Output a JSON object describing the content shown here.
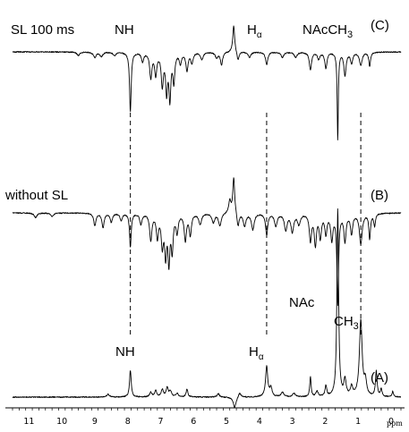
{
  "chart_data": {
    "type": "line",
    "title": "",
    "xlabel": "ppm",
    "ylabel": "",
    "xlim": [
      11.5,
      -0.3
    ],
    "x_reversed": true,
    "x_ticks": [
      "11",
      "10",
      "9",
      "8",
      "7",
      "6",
      "5",
      "4",
      "3",
      "2",
      "1",
      "0"
    ],
    "grid": false,
    "series": [
      {
        "id": "A",
        "name": "(A)",
        "direction": "up",
        "peaks": [
          {
            "x": 8.6,
            "h": 3,
            "w": 0.05
          },
          {
            "x": 7.92,
            "h": 30,
            "w": 0.03
          },
          {
            "x": 7.3,
            "h": 5,
            "w": 0.04
          },
          {
            "x": 7.15,
            "h": 7,
            "w": 0.04
          },
          {
            "x": 6.95,
            "h": 8,
            "w": 0.04
          },
          {
            "x": 6.8,
            "h": 10,
            "w": 0.04
          },
          {
            "x": 6.7,
            "h": 6,
            "w": 0.04
          },
          {
            "x": 6.5,
            "h": 4,
            "w": 0.04
          },
          {
            "x": 6.2,
            "h": 9,
            "w": 0.03
          },
          {
            "x": 5.25,
            "h": 4,
            "w": 0.04
          },
          {
            "x": 4.75,
            "h": -12,
            "w": 0.05
          },
          {
            "x": 4.6,
            "h": 5,
            "w": 0.05
          },
          {
            "x": 3.78,
            "h": 34,
            "w": 0.04
          },
          {
            "x": 3.65,
            "h": 10,
            "w": 0.04
          },
          {
            "x": 3.3,
            "h": 5,
            "w": 0.05
          },
          {
            "x": 2.95,
            "h": 4,
            "w": 0.05
          },
          {
            "x": 2.45,
            "h": 22,
            "w": 0.025
          },
          {
            "x": 2.25,
            "h": 6,
            "w": 0.04
          },
          {
            "x": 1.98,
            "h": 12,
            "w": 0.03
          },
          {
            "x": 1.62,
            "h": 210,
            "w": 0.03
          },
          {
            "x": 1.4,
            "h": 18,
            "w": 0.04
          },
          {
            "x": 1.2,
            "h": 10,
            "w": 0.04
          },
          {
            "x": 0.92,
            "h": 85,
            "w": 0.05
          },
          {
            "x": 0.78,
            "h": 16,
            "w": 0.04
          },
          {
            "x": 0.45,
            "h": 28,
            "w": 0.03
          },
          {
            "x": 0.3,
            "h": 8,
            "w": 0.03
          },
          {
            "x": -0.05,
            "h": 6,
            "w": 0.025
          }
        ]
      },
      {
        "id": "B",
        "name": "(B)",
        "direction": "down",
        "peaks": [
          {
            "x": 10.8,
            "h": 5,
            "w": 0.05
          },
          {
            "x": 10.3,
            "h": 4,
            "w": 0.05
          },
          {
            "x": 9.0,
            "h": 14,
            "w": 0.04
          },
          {
            "x": 8.75,
            "h": 16,
            "w": 0.04
          },
          {
            "x": 8.5,
            "h": 10,
            "w": 0.04
          },
          {
            "x": 8.2,
            "h": 8,
            "w": 0.04
          },
          {
            "x": 7.92,
            "h": 38,
            "w": 0.03
          },
          {
            "x": 7.6,
            "h": 12,
            "w": 0.04
          },
          {
            "x": 7.3,
            "h": 30,
            "w": 0.04
          },
          {
            "x": 7.1,
            "h": 26,
            "w": 0.04
          },
          {
            "x": 6.95,
            "h": 34,
            "w": 0.04
          },
          {
            "x": 6.85,
            "h": 44,
            "w": 0.035
          },
          {
            "x": 6.75,
            "h": 52,
            "w": 0.035
          },
          {
            "x": 6.65,
            "h": 40,
            "w": 0.035
          },
          {
            "x": 6.5,
            "h": 20,
            "w": 0.04
          },
          {
            "x": 6.25,
            "h": 30,
            "w": 0.04
          },
          {
            "x": 6.1,
            "h": 24,
            "w": 0.04
          },
          {
            "x": 5.8,
            "h": 12,
            "w": 0.05
          },
          {
            "x": 5.4,
            "h": 10,
            "w": 0.05
          },
          {
            "x": 5.2,
            "h": 14,
            "w": 0.05
          },
          {
            "x": 4.9,
            "h": -14,
            "w": 0.04
          },
          {
            "x": 4.78,
            "h": -40,
            "w": 0.035
          },
          {
            "x": 4.65,
            "h": 16,
            "w": 0.04
          },
          {
            "x": 4.45,
            "h": 14,
            "w": 0.05
          },
          {
            "x": 4.2,
            "h": 18,
            "w": 0.05
          },
          {
            "x": 3.78,
            "h": 24,
            "w": 0.04
          },
          {
            "x": 3.5,
            "h": 14,
            "w": 0.05
          },
          {
            "x": 3.2,
            "h": 18,
            "w": 0.05
          },
          {
            "x": 3.0,
            "h": 20,
            "w": 0.05
          },
          {
            "x": 2.8,
            "h": 12,
            "w": 0.05
          },
          {
            "x": 2.45,
            "h": 30,
            "w": 0.04
          },
          {
            "x": 2.3,
            "h": 34,
            "w": 0.04
          },
          {
            "x": 2.15,
            "h": 26,
            "w": 0.04
          },
          {
            "x": 1.98,
            "h": 22,
            "w": 0.04
          },
          {
            "x": 1.8,
            "h": 28,
            "w": 0.04
          },
          {
            "x": 1.62,
            "h": 100,
            "w": 0.03
          },
          {
            "x": 1.4,
            "h": 30,
            "w": 0.04
          },
          {
            "x": 1.2,
            "h": 22,
            "w": 0.04
          },
          {
            "x": 0.92,
            "h": 34,
            "w": 0.05
          },
          {
            "x": 0.65,
            "h": 28,
            "w": 0.03
          },
          {
            "x": 0.5,
            "h": 14,
            "w": 0.03
          }
        ]
      },
      {
        "id": "C",
        "name": "(C)",
        "direction": "down",
        "peaks": [
          {
            "x": 9.5,
            "h": 4,
            "w": 0.05
          },
          {
            "x": 9.0,
            "h": 6,
            "w": 0.05
          },
          {
            "x": 8.8,
            "h": 5,
            "w": 0.05
          },
          {
            "x": 8.4,
            "h": 4,
            "w": 0.05
          },
          {
            "x": 7.92,
            "h": 66,
            "w": 0.03
          },
          {
            "x": 7.55,
            "h": 10,
            "w": 0.04
          },
          {
            "x": 7.3,
            "h": 28,
            "w": 0.04
          },
          {
            "x": 7.15,
            "h": 24,
            "w": 0.04
          },
          {
            "x": 6.95,
            "h": 36,
            "w": 0.04
          },
          {
            "x": 6.82,
            "h": 42,
            "w": 0.035
          },
          {
            "x": 6.72,
            "h": 50,
            "w": 0.035
          },
          {
            "x": 6.6,
            "h": 32,
            "w": 0.035
          },
          {
            "x": 6.4,
            "h": 12,
            "w": 0.04
          },
          {
            "x": 6.2,
            "h": 20,
            "w": 0.04
          },
          {
            "x": 6.05,
            "h": 12,
            "w": 0.04
          },
          {
            "x": 5.75,
            "h": 8,
            "w": 0.05
          },
          {
            "x": 5.3,
            "h": 6,
            "w": 0.05
          },
          {
            "x": 5.15,
            "h": 14,
            "w": 0.04
          },
          {
            "x": 4.78,
            "h": -30,
            "w": 0.035
          },
          {
            "x": 4.65,
            "h": 10,
            "w": 0.04
          },
          {
            "x": 4.3,
            "h": 6,
            "w": 0.05
          },
          {
            "x": 3.78,
            "h": 14,
            "w": 0.04
          },
          {
            "x": 3.3,
            "h": 6,
            "w": 0.05
          },
          {
            "x": 2.9,
            "h": 6,
            "w": 0.05
          },
          {
            "x": 2.45,
            "h": 20,
            "w": 0.04
          },
          {
            "x": 2.2,
            "h": 8,
            "w": 0.04
          },
          {
            "x": 1.98,
            "h": 18,
            "w": 0.04
          },
          {
            "x": 1.62,
            "h": 98,
            "w": 0.02
          },
          {
            "x": 1.4,
            "h": 26,
            "w": 0.04
          },
          {
            "x": 1.2,
            "h": 12,
            "w": 0.04
          },
          {
            "x": 0.92,
            "h": 14,
            "w": 0.05
          },
          {
            "x": 0.65,
            "h": 16,
            "w": 0.03
          }
        ]
      }
    ],
    "guide_lines": [
      {
        "x": 7.92
      },
      {
        "x": 3.78
      },
      {
        "x": 0.92
      }
    ]
  },
  "labels": {
    "top_condition": "SL 100 ms",
    "top_nh": "NH",
    "top_h": "H",
    "top_h_sub": "α",
    "top_nacch_prefix": "NAcCH",
    "top_nacch_sub": "3",
    "trace_c": "(C)",
    "mid_condition": "without SL",
    "trace_b": "(B)",
    "nac": "NAc",
    "ch_prefix": "CH",
    "ch_sub": "3",
    "bottom_nh": "NH",
    "bottom_h": "H",
    "bottom_h_sub": "α",
    "trace_a": "(A)",
    "axis_unit": "ppm"
  }
}
